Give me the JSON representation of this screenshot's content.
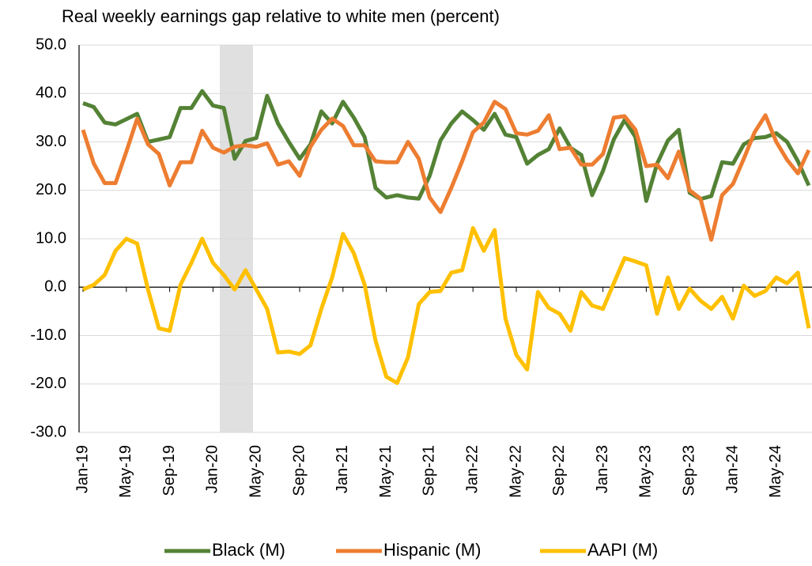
{
  "chart_data": {
    "type": "line",
    "title": "Real weekly earnings gap relative to white men (percent)",
    "categories": [
      "Jan-19",
      null,
      null,
      null,
      "May-19",
      null,
      null,
      null,
      "Sep-19",
      null,
      null,
      null,
      "Jan-20",
      null,
      null,
      null,
      "May-20",
      null,
      null,
      null,
      "Sep-20",
      null,
      null,
      null,
      "Jan-21",
      null,
      null,
      null,
      "May-21",
      null,
      null,
      null,
      "Sep-21",
      null,
      null,
      null,
      "Jan-22",
      null,
      null,
      null,
      "May-22",
      null,
      null,
      null,
      "Sep-22",
      null,
      null,
      null,
      "Jan-23",
      null,
      null,
      null,
      "May-23",
      null,
      null,
      null,
      "Sep-23",
      null,
      null,
      null,
      "Jan-24",
      null,
      null,
      null,
      "May-24",
      null,
      null,
      null
    ],
    "ylim": [
      -30,
      50
    ],
    "yticks": [
      {
        "value": -30,
        "label": "-30.0"
      },
      {
        "value": -20,
        "label": "-20.0"
      },
      {
        "value": -10,
        "label": "-10.0"
      },
      {
        "value": 0,
        "label": "0.0"
      },
      {
        "value": 10,
        "label": "10.0"
      },
      {
        "value": 20,
        "label": "20.0"
      },
      {
        "value": 30,
        "label": "30.0"
      },
      {
        "value": 40,
        "label": "40.0"
      },
      {
        "value": 50,
        "label": "50.0"
      }
    ],
    "grid": true,
    "legend": "bottom",
    "series": [
      {
        "name": "Black (M)",
        "color": "#548235",
        "values": [
          38.0,
          37.2,
          34.0,
          33.6,
          34.7,
          35.8,
          30.0,
          30.5,
          31.0,
          37.0,
          37.0,
          40.5,
          37.5,
          37.0,
          26.5,
          30.2,
          30.8,
          39.5,
          33.8,
          30.0,
          26.5,
          29.5,
          36.3,
          33.8,
          38.3,
          35.0,
          31.0,
          20.5,
          18.5,
          19.0,
          18.5,
          18.3,
          23.0,
          30.3,
          33.8,
          36.3,
          34.5,
          32.5,
          35.8,
          31.5,
          31.0,
          25.5,
          27.3,
          28.5,
          32.8,
          28.8,
          27.3,
          19.0,
          24.0,
          30.5,
          34.5,
          31.0,
          17.8,
          25.5,
          30.3,
          32.5,
          19.5,
          18.2,
          18.8,
          25.8,
          25.5,
          29.5,
          30.8,
          31.0,
          31.8,
          30.0,
          26.0,
          21.0
        ]
      },
      {
        "name": "Hispanic (M)",
        "color": "#ed7d31",
        "values": [
          32.5,
          25.5,
          21.5,
          21.5,
          28.0,
          34.8,
          29.5,
          27.5,
          21.0,
          25.8,
          25.8,
          32.3,
          28.8,
          27.8,
          29.0,
          29.3,
          29.0,
          29.7,
          25.3,
          26.0,
          23.0,
          29.0,
          32.5,
          34.8,
          33.3,
          29.3,
          29.3,
          26.0,
          25.8,
          25.8,
          30.0,
          26.5,
          18.5,
          15.5,
          20.5,
          26.0,
          32.0,
          34.0,
          38.3,
          36.8,
          31.8,
          31.5,
          32.3,
          35.5,
          28.5,
          28.8,
          25.3,
          25.3,
          27.5,
          35.0,
          35.3,
          32.5,
          25.0,
          25.3,
          22.5,
          28.0,
          20.0,
          18.3,
          9.8,
          19.0,
          21.3,
          26.5,
          32.0,
          35.5,
          30.0,
          26.3,
          23.5,
          28.3
        ]
      },
      {
        "name": "AAPI (M)",
        "color": "#ffc000",
        "values": [
          -0.5,
          0.5,
          2.5,
          7.5,
          10.0,
          9.0,
          -0.5,
          -8.5,
          -9.0,
          0.5,
          5.0,
          10.0,
          5.0,
          2.5,
          -0.5,
          3.5,
          -0.5,
          -4.5,
          -13.5,
          -13.3,
          -13.8,
          -12.0,
          -4.5,
          2.0,
          11.0,
          7.0,
          0.5,
          -11.0,
          -18.5,
          -19.8,
          -14.5,
          -3.5,
          -1.0,
          -0.8,
          3.0,
          3.5,
          12.2,
          7.5,
          11.8,
          -6.5,
          -14.0,
          -17.0,
          -1.0,
          -4.3,
          -5.5,
          -9.0,
          -1.0,
          -3.8,
          -4.5,
          0.8,
          6.0,
          5.3,
          4.5,
          -5.5,
          2.0,
          -4.5,
          -0.3,
          -2.8,
          -4.5,
          -2.0,
          -6.5,
          0.3,
          -1.8,
          -0.8,
          2.0,
          0.8,
          3.0,
          -8.5
        ]
      }
    ]
  }
}
